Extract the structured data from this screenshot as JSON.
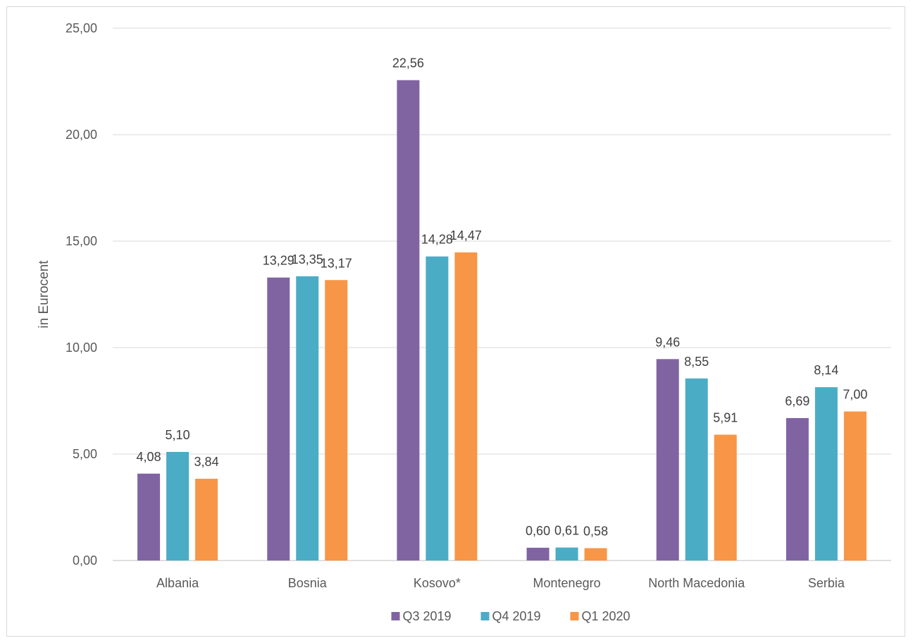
{
  "chart_data": {
    "type": "bar",
    "title": "",
    "xlabel": "",
    "ylabel": "in Eurocent",
    "ylim": [
      0,
      25
    ],
    "yticks": [
      0,
      5,
      10,
      15,
      20,
      25
    ],
    "ytick_labels": [
      "0,00",
      "5,00",
      "10,00",
      "15,00",
      "20,00",
      "25,00"
    ],
    "grid": "horizontal",
    "legend_position": "bottom",
    "categories": [
      "Albania",
      "Bosnia",
      "Kosovo*",
      "Montenegro",
      "North Macedonia",
      "Serbia"
    ],
    "series": [
      {
        "name": "Q3 2019",
        "color": "#8064a2",
        "values": [
          4.08,
          13.29,
          22.56,
          0.6,
          9.46,
          6.69
        ],
        "labels": [
          "4,08",
          "13,29",
          "22,56",
          "0,60",
          "9,46",
          "6,69"
        ]
      },
      {
        "name": "Q4 2019",
        "color": "#4bacc6",
        "values": [
          5.1,
          13.35,
          14.28,
          0.61,
          8.55,
          8.14
        ],
        "labels": [
          "5,10",
          "13,35",
          "14,28",
          "0,61",
          "8,55",
          "8,14"
        ]
      },
      {
        "name": "Q1 2020",
        "color": "#f79646",
        "values": [
          3.84,
          13.17,
          14.47,
          0.58,
          5.91,
          7.0
        ],
        "labels": [
          "3,84",
          "13,17",
          "14,47",
          "0,58",
          "5,91",
          "7,00"
        ]
      }
    ]
  }
}
